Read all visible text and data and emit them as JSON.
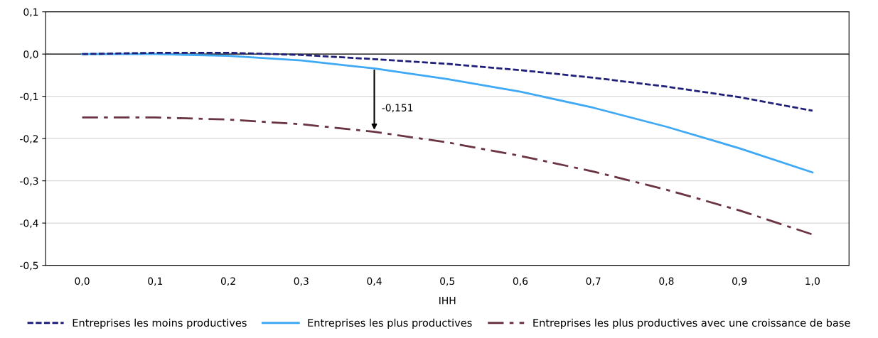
{
  "chart_data": {
    "type": "line",
    "xlabel": "IHH",
    "categories": [
      "0,0",
      "0,1",
      "0,2",
      "0,3",
      "0,4",
      "0,5",
      "0,6",
      "0,7",
      "0,8",
      "0,9",
      "1,0"
    ],
    "series": [
      {
        "name": "Entreprises les moins productives",
        "color": "#1f1f7a",
        "line_style": "dashed",
        "values": [
          0.0,
          0.003,
          0.003,
          -0.002,
          -0.012,
          -0.023,
          -0.038,
          -0.056,
          -0.077,
          -0.102,
          -0.134
        ]
      },
      {
        "name": "Entreprises les plus productives",
        "color": "#3fa9f5",
        "line_style": "solid",
        "values": [
          0.0,
          0.0,
          -0.004,
          -0.015,
          -0.034,
          -0.059,
          -0.089,
          -0.127,
          -0.172,
          -0.223,
          -0.28
        ]
      },
      {
        "name": "Entreprises les plus productives avec une croissance de base",
        "color": "#6b3443",
        "line_style": "dashdot",
        "values": [
          -0.15,
          -0.15,
          -0.155,
          -0.166,
          -0.184,
          -0.209,
          -0.241,
          -0.278,
          -0.321,
          -0.37,
          -0.427
        ]
      }
    ],
    "ylim": [
      -0.5,
      0.1
    ],
    "yticks": [
      {
        "value": -0.5,
        "label": "-0,5"
      },
      {
        "value": -0.4,
        "label": "-0,4"
      },
      {
        "value": -0.3,
        "label": "-0,3"
      },
      {
        "value": -0.2,
        "label": "-0,2"
      },
      {
        "value": -0.1,
        "label": "-0,1"
      },
      {
        "value": 0.0,
        "label": "0,0"
      },
      {
        "value": 0.1,
        "label": "0,1"
      }
    ],
    "ref_lines": [
      {
        "axis": "y",
        "value": 0.0,
        "color": "#000000"
      }
    ],
    "annotations": [
      {
        "text": "-0,151",
        "x": "0,4",
        "y": -0.184
      }
    ],
    "grid": "y",
    "legend": "bottom",
    "marker": "none"
  }
}
